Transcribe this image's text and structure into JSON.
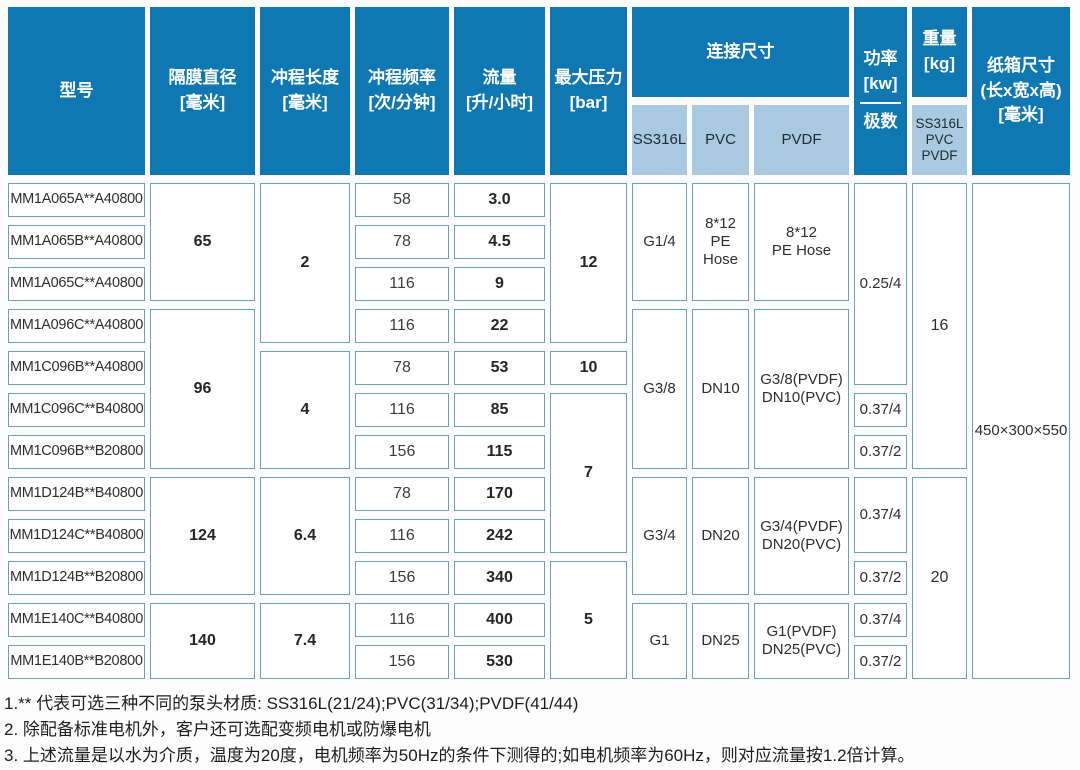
{
  "table": {
    "header": {
      "model": "型号",
      "diaphragm": "隔膜直径\n[毫米]",
      "stroke_length": "冲程长度\n[毫米]",
      "frequency": "冲程频率\n[次/分钟]",
      "flow": "流量\n[升/小时]",
      "pressure": "最大压力\n[bar]",
      "connection": "连接尺寸",
      "conn_sub": [
        "SS316L",
        "PVC",
        "PVDF"
      ],
      "power": "功率\n[kw]",
      "poles": "极数",
      "weight": "重量\n[kg]",
      "weight_sub": "SS316L\nPVC\nPVDF",
      "carton": "纸箱尺寸\n(长x宽x高)\n[毫米]"
    },
    "columns": {
      "model": [
        "MM1A065A**A40800",
        "MM1A065B**A40800",
        "MM1A065C**A40800",
        "MM1A096C**A40800",
        "MM1C096B**A40800",
        "MM1C096C**B40800",
        "MM1C096B**B20800",
        "MM1D124B**B40800",
        "MM1D124C**B40800",
        "MM1D124B**B20800",
        "MM1E140C**B40800",
        "MM1E140B**B20800"
      ],
      "diaphragm": [
        "65",
        "96",
        "124",
        "140"
      ],
      "stroke_length": [
        "2",
        "4",
        "6.4",
        "7.4"
      ],
      "frequency": [
        "58",
        "78",
        "116",
        "116",
        "78",
        "116",
        "156",
        "78",
        "116",
        "156",
        "116",
        "156"
      ],
      "flow": [
        "3.0",
        "4.5",
        "9",
        "22",
        "53",
        "85",
        "115",
        "170",
        "242",
        "340",
        "400",
        "530"
      ],
      "pressure": [
        "12",
        "10",
        "7",
        "5"
      ],
      "conn_ss316l": [
        "G1/4",
        "G3/8",
        "G3/4",
        "G1"
      ],
      "conn_pvc": [
        "8*12\nPE\nHose",
        "DN10",
        "DN20",
        "DN25"
      ],
      "conn_pvdf": [
        "8*12\nPE Hose",
        "G3/8(PVDF)\nDN10(PVC)",
        "G3/4(PVDF)\nDN20(PVC)",
        "G1(PVDF)\nDN25(PVC)"
      ],
      "power": [
        "0.25/4",
        "0.37/4",
        "0.37/2",
        "0.37/4",
        "0.37/2",
        "0.37/4",
        "0.37/2"
      ],
      "weight": [
        "16",
        "20"
      ],
      "carton": "450×300×550"
    }
  },
  "notes": [
    "1.** 代表可选三种不同的泵头材质: SS316L(21/24);PVC(31/34);PVDF(41/44)",
    "2. 除配备标准电机外，客户还可选配变频电机或防爆电机",
    "3. 上述流量是以水为介质，温度为20度，电机频率为50Hz的条件下测得的;如电机频率为60Hz，则对应流量按1.2倍计算。"
  ],
  "colors": {
    "header_blue": "#0f78b2",
    "subheader_blue": "#a9c9e0",
    "cell_border_teal": "#6ba2ae"
  }
}
